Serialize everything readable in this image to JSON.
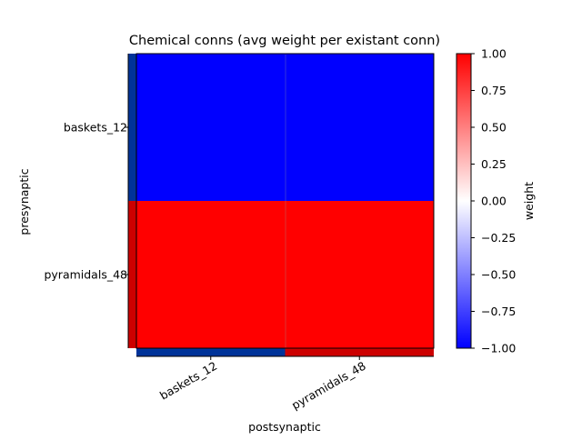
{
  "chart_data": {
    "type": "heatmap",
    "title": "Chemical conns (avg weight per existant conn)",
    "xlabel": "postsynaptic",
    "ylabel": "presynaptic",
    "x_categories": [
      "baskets_12",
      "pyramidals_48"
    ],
    "y_categories": [
      "baskets_12",
      "pyramidals_48"
    ],
    "values": [
      [
        -1,
        -1
      ],
      [
        1,
        1
      ]
    ],
    "pre_population_colors": [
      "#003399",
      "#cc0000"
    ],
    "post_population_colors": [
      "#003399",
      "#cc0000"
    ],
    "colorbar": {
      "label": "weight",
      "vmin": -1,
      "vmax": 1,
      "colormap": [
        "#0000ff",
        "#ffffff",
        "#ff0000"
      ],
      "tick_values": [
        1,
        0.75,
        0.5,
        0.25,
        0,
        -0.25,
        -0.5,
        -0.75,
        -1
      ],
      "tick_labels": [
        "1.00",
        "0.75",
        "0.50",
        "0.25",
        "0.00",
        "−0.25",
        "−0.50",
        "−0.75",
        "−1.00"
      ]
    }
  }
}
